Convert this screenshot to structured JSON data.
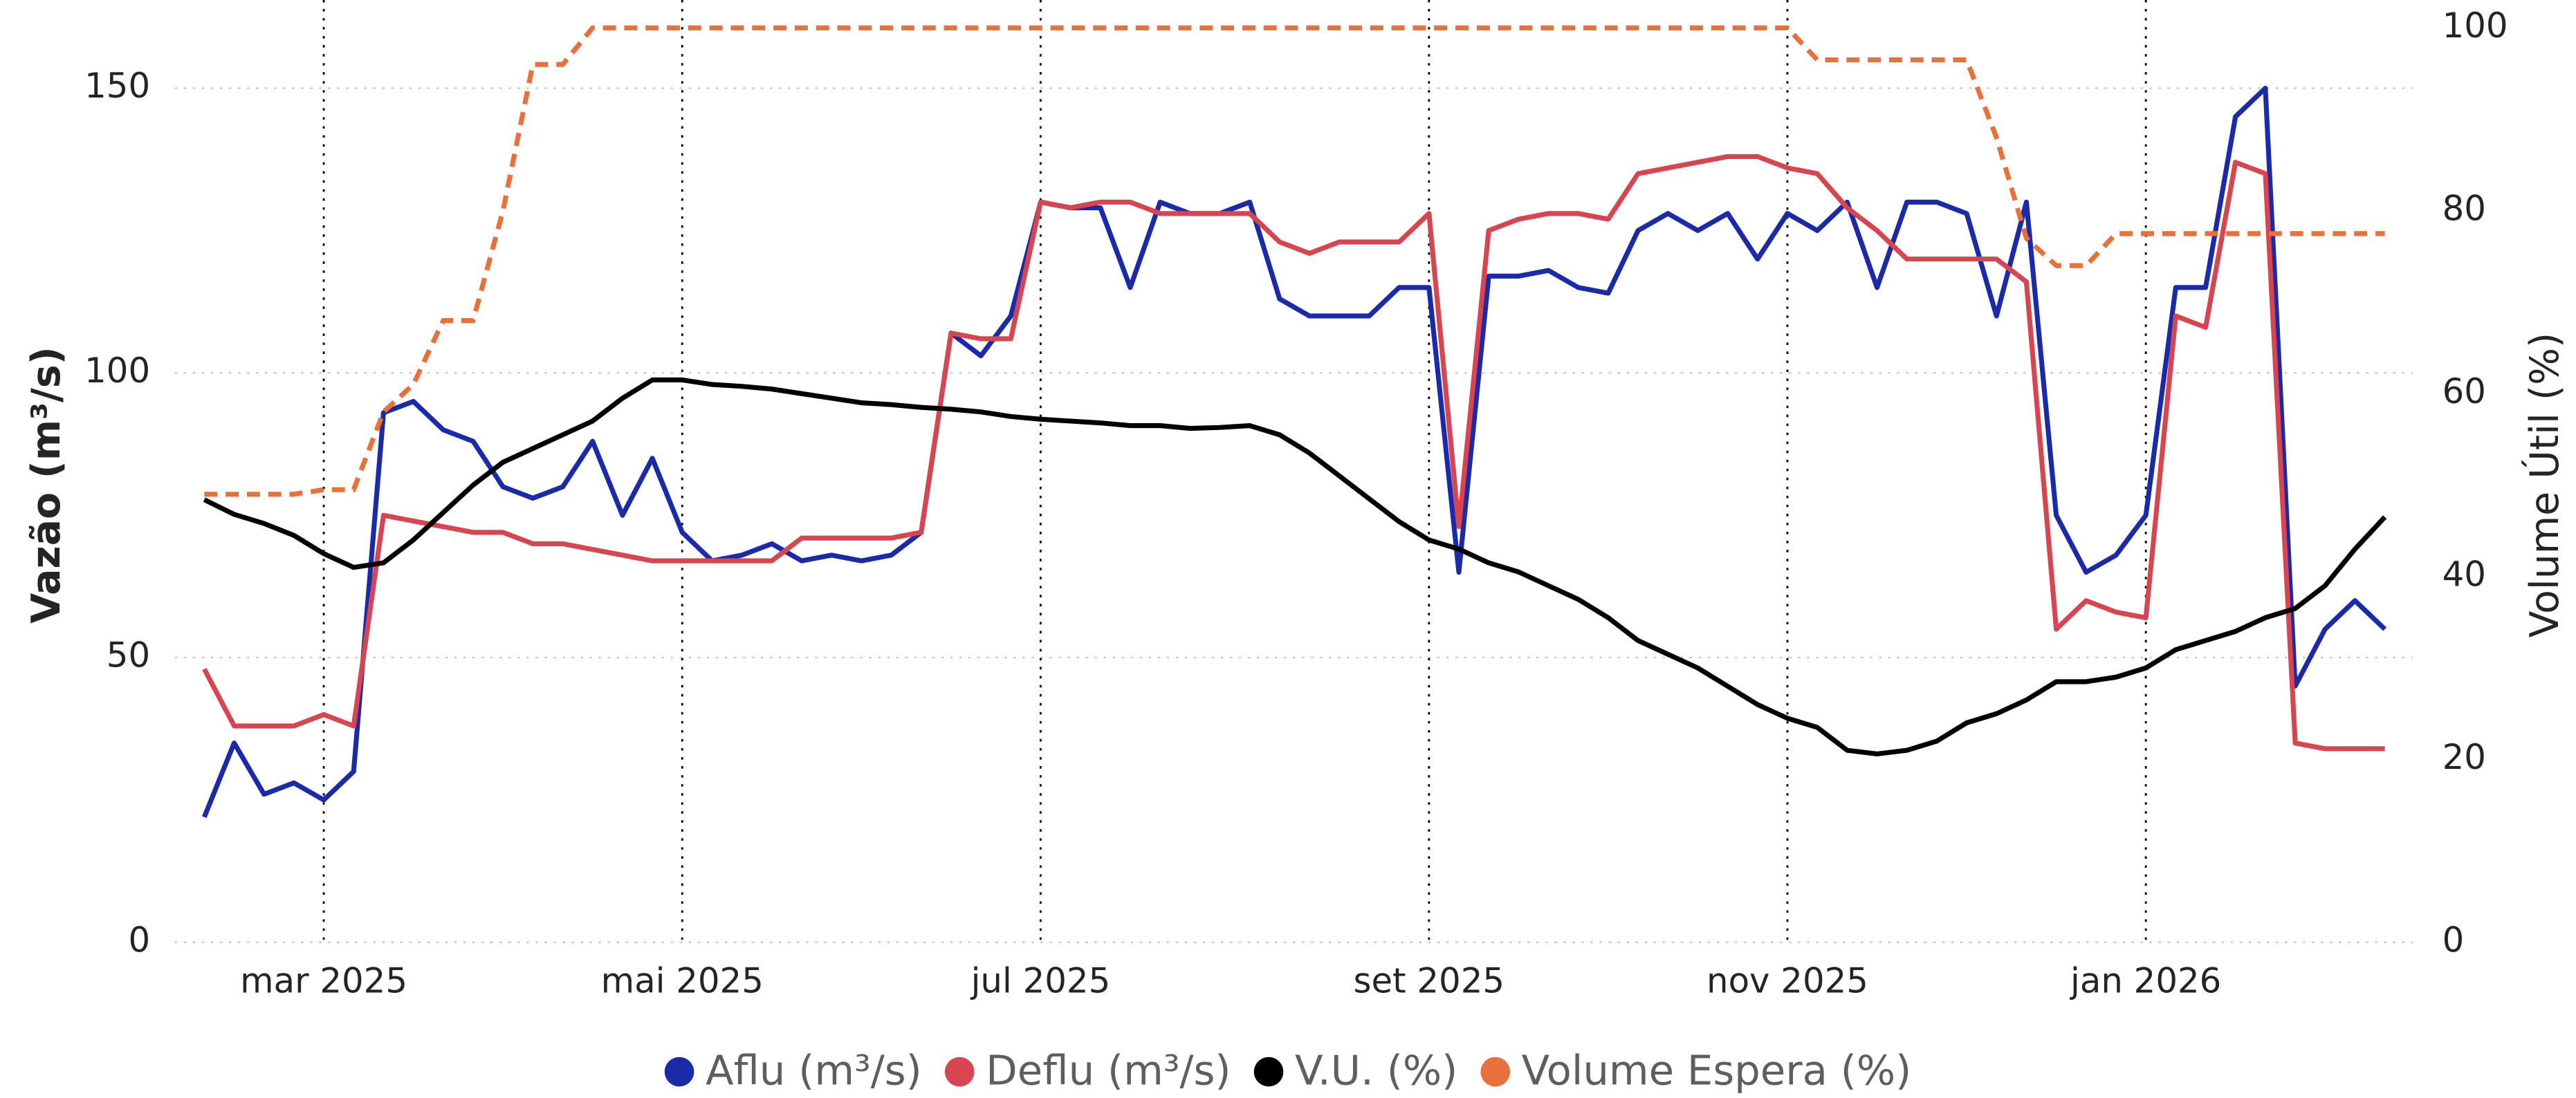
{
  "chart_data": {
    "type": "line",
    "y_label": "Vazão (m³/s)",
    "y2_label": "Volume Útil (%)",
    "categories": [
      null,
      null,
      null,
      null,
      "mar 2025",
      null,
      null,
      null,
      null,
      null,
      null,
      null,
      null,
      null,
      null,
      null,
      "mai 2025",
      null,
      null,
      null,
      null,
      null,
      null,
      null,
      null,
      null,
      null,
      null,
      "jul 2025",
      null,
      null,
      null,
      null,
      null,
      null,
      null,
      null,
      null,
      null,
      null,
      null,
      "set 2025",
      null,
      null,
      null,
      null,
      null,
      null,
      null,
      null,
      null,
      null,
      null,
      "nov 2025",
      null,
      null,
      null,
      null,
      null,
      null,
      null,
      null,
      null,
      null,
      null,
      "jan 2026",
      null,
      null,
      null,
      null,
      null,
      null,
      null,
      null
    ],
    "series": [
      {
        "name": "Aflu (m³/s)",
        "color": "#1a2aa8",
        "values": [
          22,
          35,
          26,
          28,
          25,
          30,
          93,
          95,
          90,
          88,
          80,
          78,
          80,
          88,
          75,
          85,
          72,
          67,
          68,
          70,
          67,
          68,
          67,
          68,
          72,
          107,
          103,
          110,
          130,
          129,
          129,
          115,
          130,
          128,
          128,
          130,
          113,
          110,
          110,
          110,
          115,
          115,
          65,
          117,
          117,
          118,
          115,
          114,
          125,
          128,
          125,
          128,
          120,
          128,
          125,
          130,
          115,
          130,
          130,
          128,
          110,
          130,
          75,
          65,
          68,
          75,
          115,
          115,
          145,
          150,
          45,
          55,
          60,
          55
        ]
      },
      {
        "name": "Deflu (m³/s)",
        "color": "#d64550",
        "values": [
          48,
          38,
          38,
          38,
          40,
          38,
          75,
          74,
          73,
          72,
          72,
          70,
          70,
          69,
          68,
          67,
          67,
          67,
          67,
          67,
          71,
          71,
          71,
          71,
          72,
          107,
          106,
          106,
          130,
          129,
          130,
          130,
          128,
          128,
          128,
          128,
          123,
          121,
          123,
          123,
          123,
          128,
          73,
          125,
          127,
          128,
          128,
          127,
          135,
          136,
          137,
          138,
          138,
          136,
          135,
          129,
          125,
          120,
          120,
          120,
          120,
          116,
          55,
          60,
          58,
          57,
          110,
          108,
          137,
          135,
          35,
          34,
          34,
          34
        ]
      },
      {
        "name": "V.U. (%)",
        "color": "#000000",
        "axis": "y2",
        "values": [
          48.4,
          46.8,
          45.8,
          44.5,
          42.5,
          41,
          41.5,
          44,
          47,
          50,
          52.5,
          54,
          55.5,
          57,
          59.5,
          61.5,
          61.5,
          61,
          60.8,
          60.5,
          60,
          59.5,
          59,
          58.8,
          58.5,
          58.3,
          58,
          57.5,
          57.2,
          57,
          56.8,
          56.5,
          56.5,
          56.2,
          56.3,
          56.5,
          55.5,
          53.5,
          51,
          48.5,
          46,
          44,
          43,
          41.5,
          40.5,
          39,
          37.5,
          35.5,
          33,
          31.5,
          30,
          28,
          26,
          24.5,
          23.5,
          21,
          20.6,
          21,
          22,
          24,
          25,
          26.5,
          28.5,
          28.5,
          29,
          30,
          32,
          33,
          34,
          35.5,
          36.5,
          39,
          43,
          46.5
        ]
      },
      {
        "name": "Volume Espera (%)",
        "color": "#e8703a",
        "axis": "y2",
        "dashed": true,
        "values": [
          49,
          49,
          49,
          49,
          49.5,
          49.5,
          58,
          61,
          68,
          68,
          80,
          96,
          96,
          100,
          100,
          100,
          100,
          100,
          100,
          100,
          100,
          100,
          100,
          100,
          100,
          100,
          100,
          100,
          100,
          100,
          100,
          100,
          100,
          100,
          100,
          100,
          100,
          100,
          100,
          100,
          100,
          100,
          100,
          100,
          100,
          100,
          100,
          100,
          100,
          100,
          100,
          100,
          100,
          100,
          96.5,
          96.5,
          96.5,
          96.5,
          96.5,
          96.5,
          88,
          77,
          74,
          74,
          77.5,
          77.5,
          77.5,
          77.5,
          77.5,
          77.5,
          77.5,
          77.5,
          77.5,
          77.5
        ]
      }
    ],
    "ylim": [
      0,
      160.6
    ],
    "yticks": [
      0,
      50,
      100,
      150
    ],
    "y2lim": [
      0,
      100
    ],
    "y2ticks": [
      0,
      20,
      40,
      60,
      80,
      100
    ],
    "grid": true,
    "legend": "bottom"
  }
}
